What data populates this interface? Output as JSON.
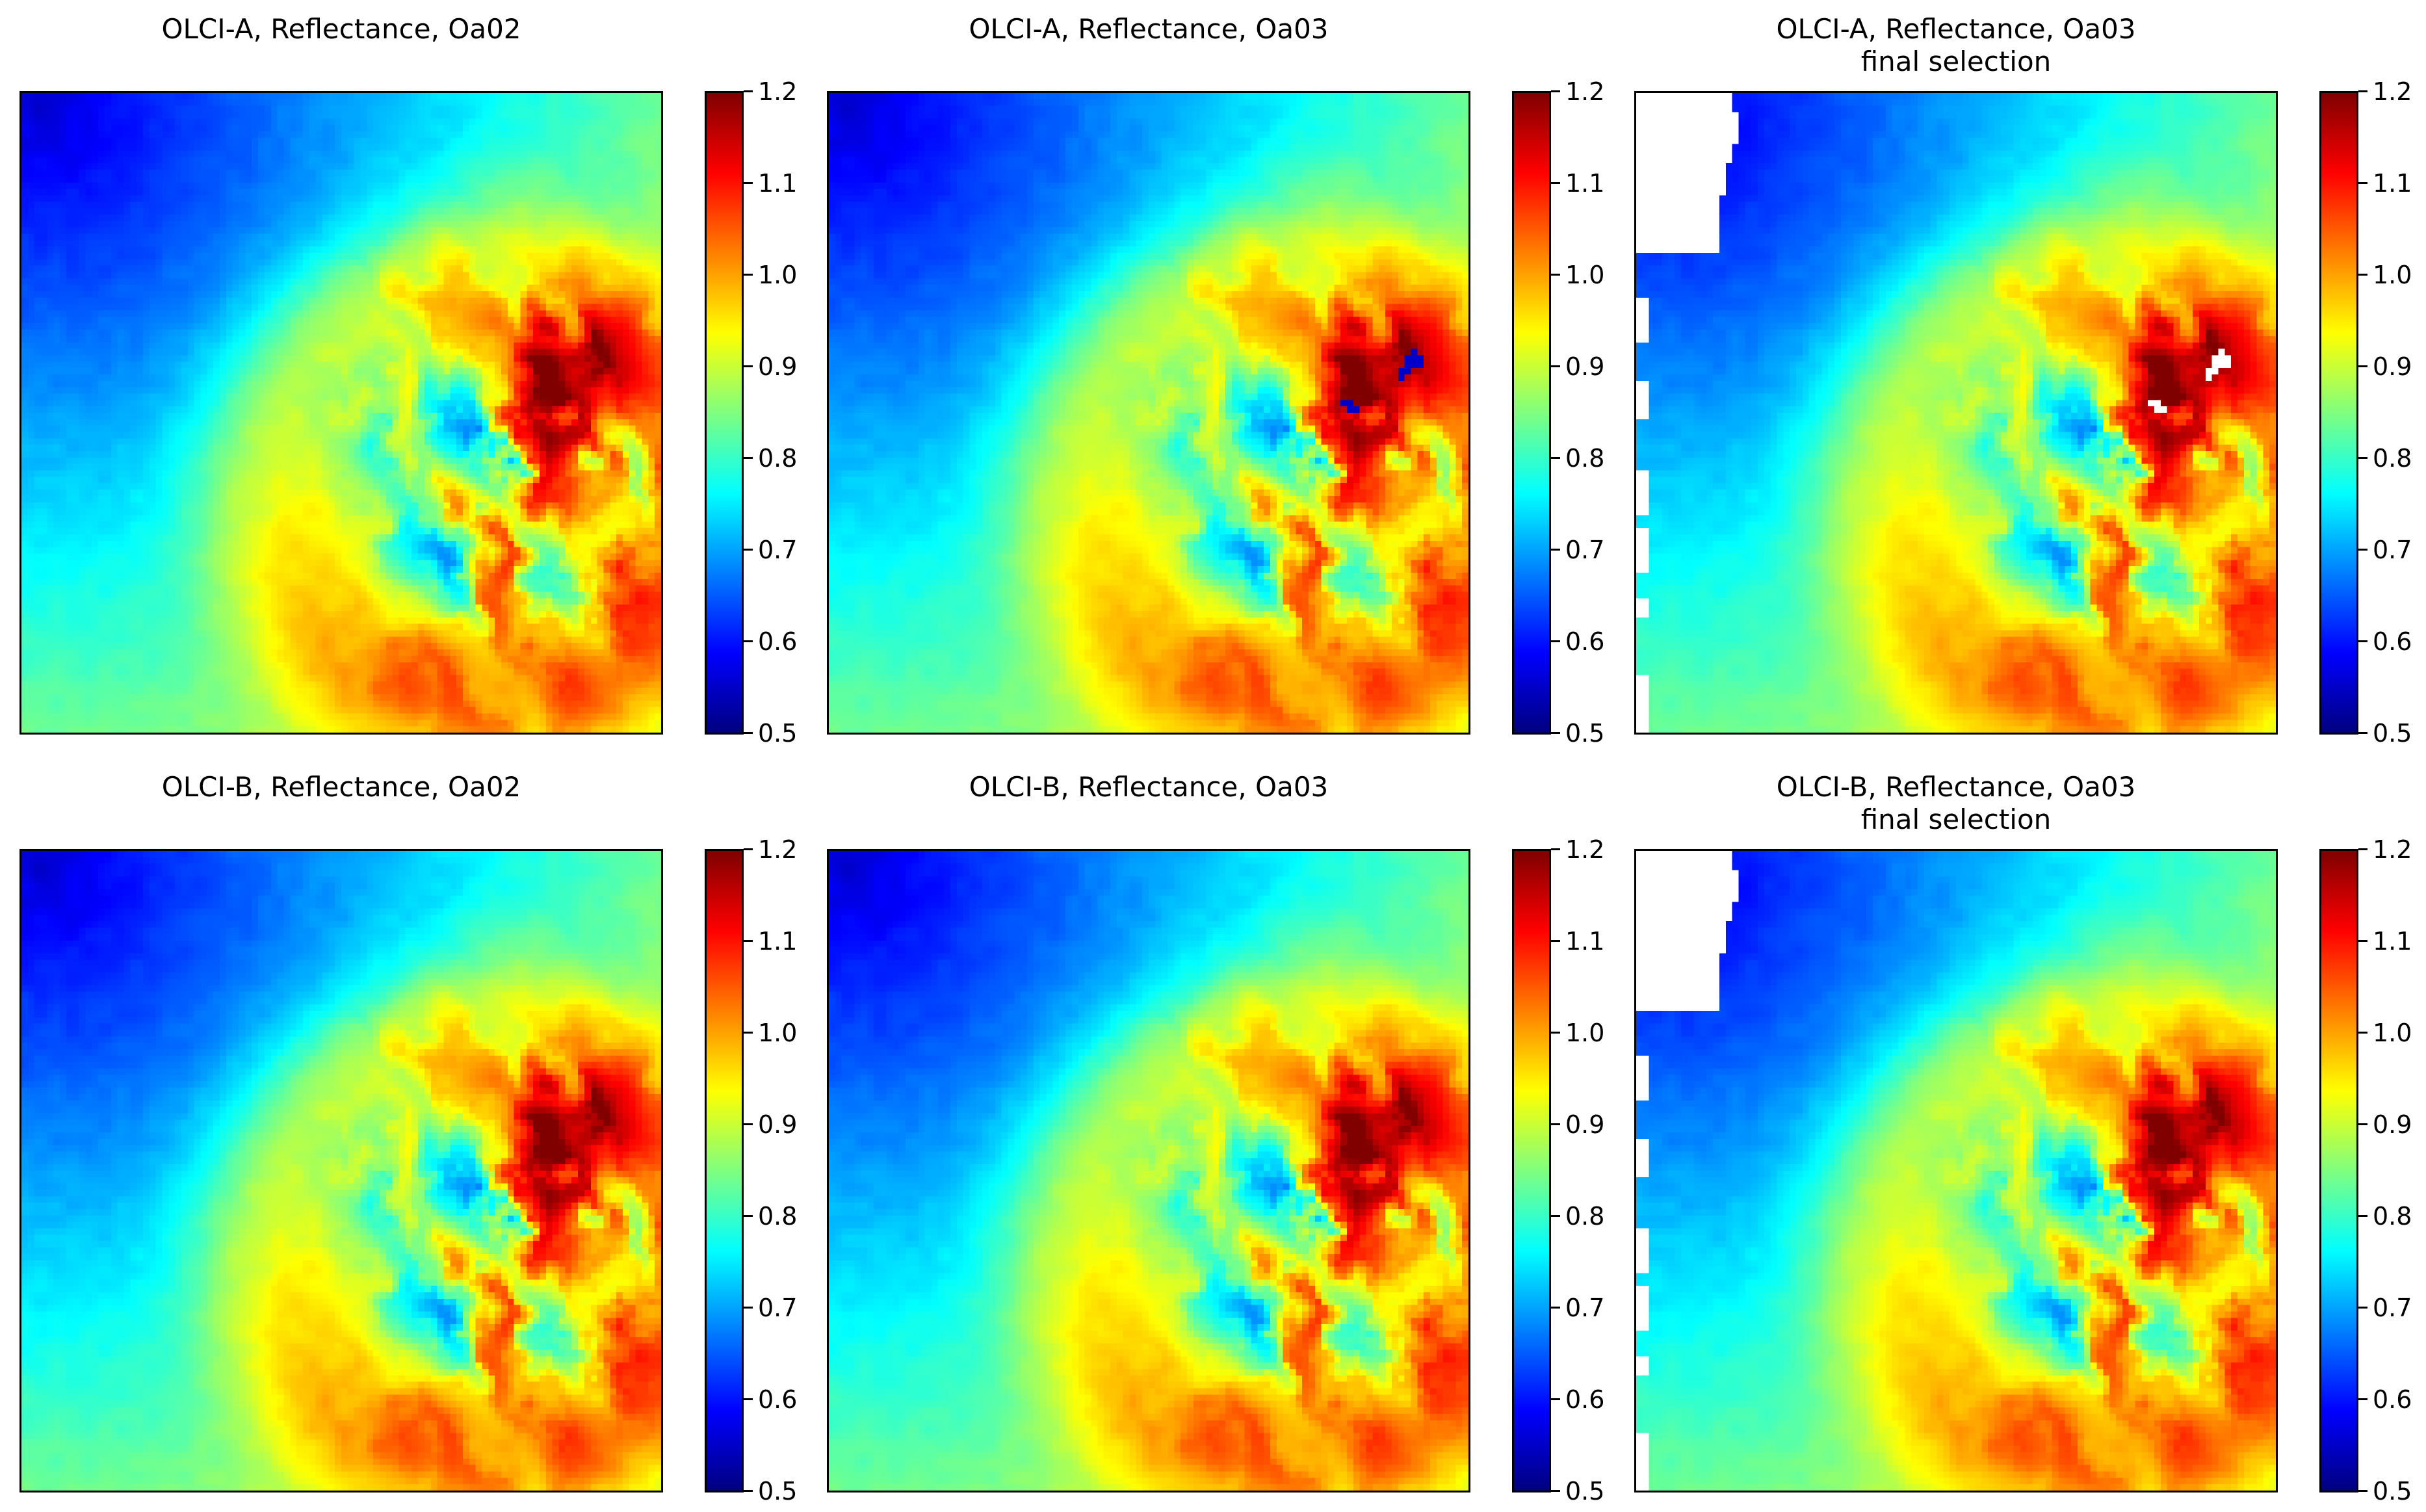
{
  "chart_data": [
    {
      "type": "heatmap",
      "title": "OLCI-A, Reflectance, Oa02",
      "sensor": "OLCI-A",
      "band": "Oa02",
      "masking": "none",
      "colormap": "jet",
      "vmin": 0.5,
      "vmax": 1.2,
      "colorbar_ticks": [
        "0.5",
        "0.6",
        "0.7",
        "0.8",
        "0.9",
        "1.0",
        "1.1",
        "1.2"
      ]
    },
    {
      "type": "heatmap",
      "title": "OLCI-A, Reflectance, Oa03",
      "sensor": "OLCI-A",
      "band": "Oa03",
      "masking": "none",
      "colormap": "jet",
      "vmin": 0.5,
      "vmax": 1.2,
      "colorbar_ticks": [
        "0.5",
        "0.6",
        "0.7",
        "0.8",
        "0.9",
        "1.0",
        "1.1",
        "1.2"
      ]
    },
    {
      "type": "heatmap",
      "title": "OLCI-A, Reflectance, Oa03",
      "subtitle": "final selection",
      "sensor": "OLCI-A",
      "band": "Oa03",
      "masking": "masked pixels shown white",
      "colormap": "jet",
      "vmin": 0.5,
      "vmax": 1.2,
      "colorbar_ticks": [
        "0.5",
        "0.6",
        "0.7",
        "0.8",
        "0.9",
        "1.0",
        "1.1",
        "1.2"
      ]
    },
    {
      "type": "heatmap",
      "title": "OLCI-B, Reflectance, Oa02",
      "sensor": "OLCI-B",
      "band": "Oa02",
      "masking": "none",
      "colormap": "jet",
      "vmin": 0.5,
      "vmax": 1.2,
      "colorbar_ticks": [
        "0.5",
        "0.6",
        "0.7",
        "0.8",
        "0.9",
        "1.0",
        "1.1",
        "1.2"
      ]
    },
    {
      "type": "heatmap",
      "title": "OLCI-B, Reflectance, Oa03",
      "sensor": "OLCI-B",
      "band": "Oa03",
      "masking": "none",
      "colormap": "jet",
      "vmin": 0.5,
      "vmax": 1.2,
      "colorbar_ticks": [
        "0.5",
        "0.6",
        "0.7",
        "0.8",
        "0.9",
        "1.0",
        "1.1",
        "1.2"
      ]
    },
    {
      "type": "heatmap",
      "title": "OLCI-B, Reflectance, Oa03",
      "subtitle": "final selection",
      "sensor": "OLCI-B",
      "band": "Oa03",
      "masking": "masked pixels shown white",
      "colormap": "jet",
      "vmin": 0.5,
      "vmax": 1.2,
      "colorbar_ticks": [
        "0.5",
        "0.6",
        "0.7",
        "0.8",
        "0.9",
        "1.0",
        "1.1",
        "1.2"
      ]
    }
  ]
}
